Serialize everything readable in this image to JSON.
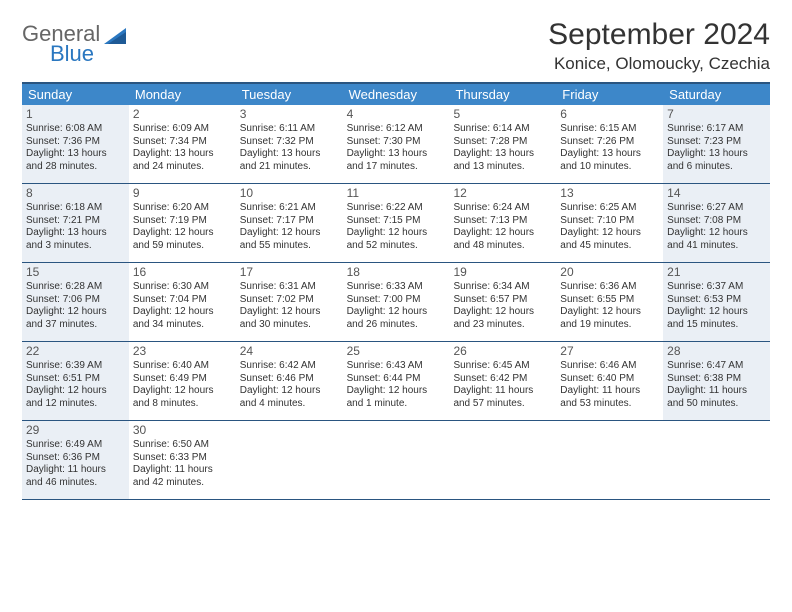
{
  "logo": {
    "top": "General",
    "bottom": "Blue"
  },
  "title": "September 2024",
  "location": "Konice, Olomoucky, Czechia",
  "colors": {
    "header_bar": "#3d87c9",
    "border": "#2a5580",
    "shaded_cell": "#eaeff5",
    "logo_blue": "#2a77c0"
  },
  "weekdays": [
    "Sunday",
    "Monday",
    "Tuesday",
    "Wednesday",
    "Thursday",
    "Friday",
    "Saturday"
  ],
  "weeks": [
    [
      {
        "n": "1",
        "sunrise": "Sunrise: 6:08 AM",
        "sunset": "Sunset: 7:36 PM",
        "daylight": "Daylight: 13 hours and 28 minutes.",
        "shaded": true
      },
      {
        "n": "2",
        "sunrise": "Sunrise: 6:09 AM",
        "sunset": "Sunset: 7:34 PM",
        "daylight": "Daylight: 13 hours and 24 minutes."
      },
      {
        "n": "3",
        "sunrise": "Sunrise: 6:11 AM",
        "sunset": "Sunset: 7:32 PM",
        "daylight": "Daylight: 13 hours and 21 minutes."
      },
      {
        "n": "4",
        "sunrise": "Sunrise: 6:12 AM",
        "sunset": "Sunset: 7:30 PM",
        "daylight": "Daylight: 13 hours and 17 minutes."
      },
      {
        "n": "5",
        "sunrise": "Sunrise: 6:14 AM",
        "sunset": "Sunset: 7:28 PM",
        "daylight": "Daylight: 13 hours and 13 minutes."
      },
      {
        "n": "6",
        "sunrise": "Sunrise: 6:15 AM",
        "sunset": "Sunset: 7:26 PM",
        "daylight": "Daylight: 13 hours and 10 minutes."
      },
      {
        "n": "7",
        "sunrise": "Sunrise: 6:17 AM",
        "sunset": "Sunset: 7:23 PM",
        "daylight": "Daylight: 13 hours and 6 minutes.",
        "shaded": true
      }
    ],
    [
      {
        "n": "8",
        "sunrise": "Sunrise: 6:18 AM",
        "sunset": "Sunset: 7:21 PM",
        "daylight": "Daylight: 13 hours and 3 minutes.",
        "shaded": true
      },
      {
        "n": "9",
        "sunrise": "Sunrise: 6:20 AM",
        "sunset": "Sunset: 7:19 PM",
        "daylight": "Daylight: 12 hours and 59 minutes."
      },
      {
        "n": "10",
        "sunrise": "Sunrise: 6:21 AM",
        "sunset": "Sunset: 7:17 PM",
        "daylight": "Daylight: 12 hours and 55 minutes."
      },
      {
        "n": "11",
        "sunrise": "Sunrise: 6:22 AM",
        "sunset": "Sunset: 7:15 PM",
        "daylight": "Daylight: 12 hours and 52 minutes."
      },
      {
        "n": "12",
        "sunrise": "Sunrise: 6:24 AM",
        "sunset": "Sunset: 7:13 PM",
        "daylight": "Daylight: 12 hours and 48 minutes."
      },
      {
        "n": "13",
        "sunrise": "Sunrise: 6:25 AM",
        "sunset": "Sunset: 7:10 PM",
        "daylight": "Daylight: 12 hours and 45 minutes."
      },
      {
        "n": "14",
        "sunrise": "Sunrise: 6:27 AM",
        "sunset": "Sunset: 7:08 PM",
        "daylight": "Daylight: 12 hours and 41 minutes.",
        "shaded": true
      }
    ],
    [
      {
        "n": "15",
        "sunrise": "Sunrise: 6:28 AM",
        "sunset": "Sunset: 7:06 PM",
        "daylight": "Daylight: 12 hours and 37 minutes.",
        "shaded": true
      },
      {
        "n": "16",
        "sunrise": "Sunrise: 6:30 AM",
        "sunset": "Sunset: 7:04 PM",
        "daylight": "Daylight: 12 hours and 34 minutes."
      },
      {
        "n": "17",
        "sunrise": "Sunrise: 6:31 AM",
        "sunset": "Sunset: 7:02 PM",
        "daylight": "Daylight: 12 hours and 30 minutes."
      },
      {
        "n": "18",
        "sunrise": "Sunrise: 6:33 AM",
        "sunset": "Sunset: 7:00 PM",
        "daylight": "Daylight: 12 hours and 26 minutes."
      },
      {
        "n": "19",
        "sunrise": "Sunrise: 6:34 AM",
        "sunset": "Sunset: 6:57 PM",
        "daylight": "Daylight: 12 hours and 23 minutes."
      },
      {
        "n": "20",
        "sunrise": "Sunrise: 6:36 AM",
        "sunset": "Sunset: 6:55 PM",
        "daylight": "Daylight: 12 hours and 19 minutes."
      },
      {
        "n": "21",
        "sunrise": "Sunrise: 6:37 AM",
        "sunset": "Sunset: 6:53 PM",
        "daylight": "Daylight: 12 hours and 15 minutes.",
        "shaded": true
      }
    ],
    [
      {
        "n": "22",
        "sunrise": "Sunrise: 6:39 AM",
        "sunset": "Sunset: 6:51 PM",
        "daylight": "Daylight: 12 hours and 12 minutes.",
        "shaded": true
      },
      {
        "n": "23",
        "sunrise": "Sunrise: 6:40 AM",
        "sunset": "Sunset: 6:49 PM",
        "daylight": "Daylight: 12 hours and 8 minutes."
      },
      {
        "n": "24",
        "sunrise": "Sunrise: 6:42 AM",
        "sunset": "Sunset: 6:46 PM",
        "daylight": "Daylight: 12 hours and 4 minutes."
      },
      {
        "n": "25",
        "sunrise": "Sunrise: 6:43 AM",
        "sunset": "Sunset: 6:44 PM",
        "daylight": "Daylight: 12 hours and 1 minute."
      },
      {
        "n": "26",
        "sunrise": "Sunrise: 6:45 AM",
        "sunset": "Sunset: 6:42 PM",
        "daylight": "Daylight: 11 hours and 57 minutes."
      },
      {
        "n": "27",
        "sunrise": "Sunrise: 6:46 AM",
        "sunset": "Sunset: 6:40 PM",
        "daylight": "Daylight: 11 hours and 53 minutes."
      },
      {
        "n": "28",
        "sunrise": "Sunrise: 6:47 AM",
        "sunset": "Sunset: 6:38 PM",
        "daylight": "Daylight: 11 hours and 50 minutes.",
        "shaded": true
      }
    ],
    [
      {
        "n": "29",
        "sunrise": "Sunrise: 6:49 AM",
        "sunset": "Sunset: 6:36 PM",
        "daylight": "Daylight: 11 hours and 46 minutes.",
        "shaded": true
      },
      {
        "n": "30",
        "sunrise": "Sunrise: 6:50 AM",
        "sunset": "Sunset: 6:33 PM",
        "daylight": "Daylight: 11 hours and 42 minutes."
      },
      {
        "empty": true
      },
      {
        "empty": true
      },
      {
        "empty": true
      },
      {
        "empty": true
      },
      {
        "empty": true
      }
    ]
  ]
}
